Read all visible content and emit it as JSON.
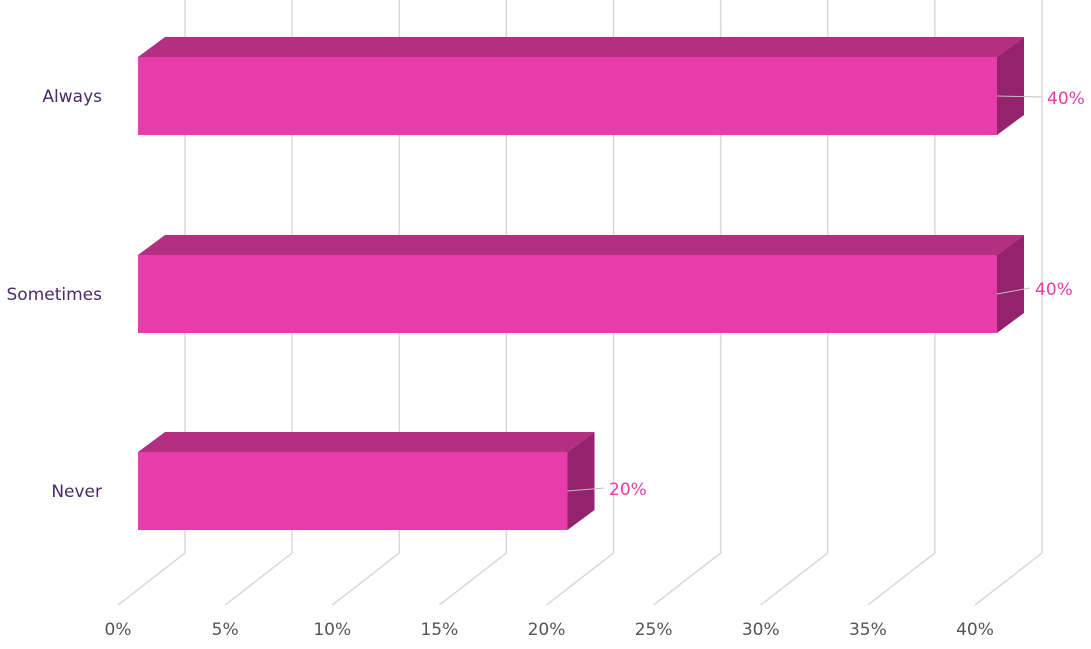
{
  "chart_data": {
    "type": "bar",
    "orientation": "horizontal",
    "three_d": true,
    "categories": [
      "Always",
      "Sometimes",
      "Never"
    ],
    "values": [
      40,
      40,
      20
    ],
    "data_labels": [
      "40%",
      "40%",
      "20%"
    ],
    "x_ticks": [
      "0%",
      "5%",
      "10%",
      "15%",
      "20%",
      "25%",
      "30%",
      "35%",
      "40%"
    ],
    "xlim": [
      0,
      40
    ],
    "grid": true,
    "legend": "none",
    "colors": {
      "bar_front": "#e83cab",
      "bar_top": "#b22f82",
      "bar_side": "#94236d",
      "data_label": "#e83cab",
      "gridline": "#d9d9d9",
      "category_text": "#4a2a6a",
      "tick_text": "#555555"
    }
  }
}
